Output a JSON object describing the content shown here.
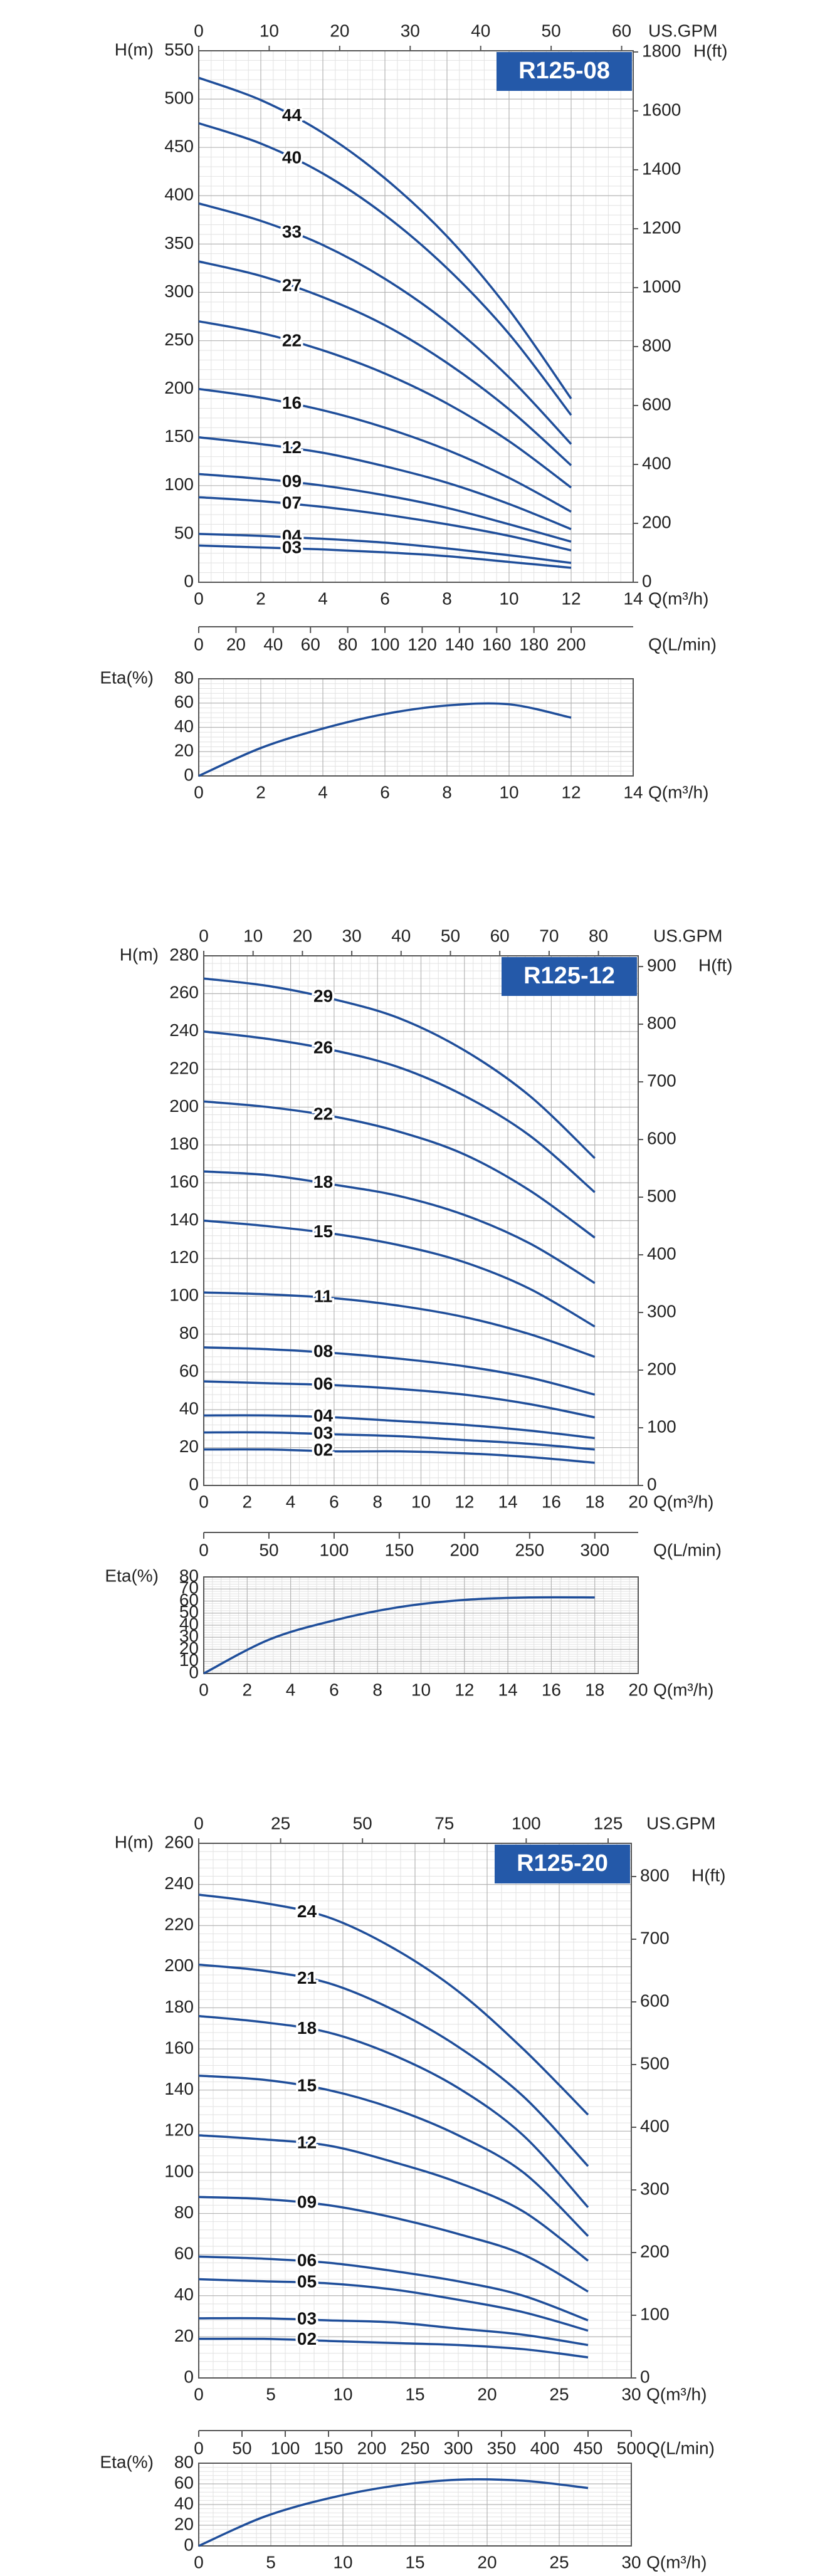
{
  "chart_data": [
    {
      "type": "line",
      "title": "R125-08",
      "ylabel": "H(m)",
      "xlabel": "Q(m³/h)",
      "grid": true,
      "xlim": [
        0,
        14
      ],
      "xticks": [
        0,
        2,
        4,
        6,
        8,
        10,
        12,
        14
      ],
      "ylim": [
        0,
        550
      ],
      "yticks": [
        0,
        50,
        100,
        150,
        200,
        250,
        300,
        350,
        400,
        450,
        500,
        550
      ],
      "top_axis": {
        "label": "US.GPM",
        "lim": [
          0,
          61.64
        ],
        "ticks": [
          0,
          10,
          20,
          30,
          40,
          50,
          60
        ]
      },
      "right_axis": {
        "label": "H(ft)",
        "lim": [
          0,
          1804
        ],
        "ticks": [
          0,
          200,
          400,
          600,
          800,
          1000,
          1200,
          1400,
          1600,
          1800
        ]
      },
      "flow_axis": {
        "label": "Q(L/min)",
        "lim": [
          0,
          233.3
        ],
        "ticks": [
          0,
          20,
          40,
          60,
          80,
          100,
          120,
          140,
          160,
          180,
          200
        ]
      },
      "x": [
        0,
        2,
        4,
        6,
        8,
        10,
        12
      ],
      "series": [
        {
          "name": "44",
          "color": "#1f4e9a",
          "values": [
            522,
            499,
            465,
            418,
            358,
            282,
            190
          ]
        },
        {
          "name": "40",
          "color": "#1f4e9a",
          "values": [
            475,
            454,
            423,
            380,
            325,
            257,
            173
          ]
        },
        {
          "name": "33",
          "color": "#1f4e9a",
          "values": [
            392,
            374,
            349,
            314,
            269,
            212,
            143
          ]
        },
        {
          "name": "27",
          "color": "#1f4e9a",
          "values": [
            332,
            317,
            295,
            266,
            227,
            179,
            121
          ]
        },
        {
          "name": "22",
          "color": "#1f4e9a",
          "values": [
            270,
            258,
            240,
            216,
            185,
            146,
            98
          ]
        },
        {
          "name": "16",
          "color": "#1f4e9a",
          "values": [
            200,
            191,
            178,
            160,
            137,
            108,
            73
          ]
        },
        {
          "name": "12",
          "color": "#1f4e9a",
          "values": [
            150,
            143,
            134,
            120,
            103,
            81,
            55
          ]
        },
        {
          "name": "09",
          "color": "#1f4e9a",
          "values": [
            112,
            107,
            100,
            90,
            77,
            60,
            42
          ]
        },
        {
          "name": "07",
          "color": "#1f4e9a",
          "values": [
            88,
            84,
            78,
            70,
            60,
            48,
            33
          ]
        },
        {
          "name": "04",
          "color": "#1f4e9a",
          "values": [
            50,
            48,
            45,
            41,
            35,
            28,
            20
          ]
        },
        {
          "name": "03",
          "color": "#1f4e9a",
          "values": [
            38,
            36,
            34,
            31,
            27,
            21,
            15
          ]
        }
      ]
    },
    {
      "type": "line",
      "ylabel": "Eta(%)",
      "xlabel": "Q(m³/h)",
      "grid": true,
      "xlim": [
        0,
        14
      ],
      "xticks": [
        0,
        2,
        4,
        6,
        8,
        10,
        12,
        14
      ],
      "ylim": [
        0,
        80
      ],
      "yticks": [
        0,
        20,
        40,
        60,
        80
      ],
      "x": [
        0,
        2,
        4,
        6,
        8,
        10,
        12
      ],
      "series": [
        {
          "color": "#1f4e9a",
          "values": [
            0,
            23,
            39,
            51,
            58,
            59,
            48
          ]
        }
      ]
    },
    {
      "type": "line",
      "title": "R125-12",
      "ylabel": "H(m)",
      "xlabel": "Q(m³/h)",
      "grid": true,
      "xlim": [
        0,
        20
      ],
      "xticks": [
        0,
        2,
        4,
        6,
        8,
        10,
        12,
        14,
        16,
        18,
        20
      ],
      "ylim": [
        0,
        280
      ],
      "yticks": [
        0,
        20,
        40,
        60,
        80,
        100,
        120,
        140,
        160,
        180,
        200,
        220,
        240,
        260,
        280
      ],
      "top_axis": {
        "label": "US.GPM",
        "lim": [
          0,
          88.06
        ],
        "ticks": [
          0,
          10,
          20,
          30,
          40,
          50,
          60,
          70,
          80
        ]
      },
      "right_axis": {
        "label": "H(ft)",
        "lim": [
          0,
          918.6
        ],
        "ticks": [
          0,
          100,
          200,
          300,
          400,
          500,
          600,
          700,
          800,
          900
        ]
      },
      "flow_axis": {
        "label": "Q(L/min)",
        "lim": [
          0,
          333.3
        ],
        "ticks": [
          0,
          50,
          100,
          150,
          200,
          250,
          300
        ]
      },
      "x": [
        0,
        3,
        6,
        9,
        12,
        15,
        18
      ],
      "series": [
        {
          "name": "29",
          "color": "#1f4e9a",
          "values": [
            268,
            264,
            257,
            247,
            230,
            206,
            173
          ]
        },
        {
          "name": "26",
          "color": "#1f4e9a",
          "values": [
            240,
            236,
            230,
            221,
            206,
            185,
            155
          ]
        },
        {
          "name": "22",
          "color": "#1f4e9a",
          "values": [
            203,
            200,
            195,
            187,
            175,
            156,
            131
          ]
        },
        {
          "name": "18",
          "color": "#1f4e9a",
          "values": [
            166,
            164,
            159,
            153,
            143,
            128,
            107
          ]
        },
        {
          "name": "15",
          "color": "#1f4e9a",
          "values": [
            140,
            137,
            133,
            127,
            118,
            104,
            84
          ]
        },
        {
          "name": "11",
          "color": "#1f4e9a",
          "values": [
            102,
            101,
            99,
            95,
            89,
            80,
            68
          ]
        },
        {
          "name": "08",
          "color": "#1f4e9a",
          "values": [
            73,
            72,
            70,
            67,
            63,
            57,
            48
          ]
        },
        {
          "name": "06",
          "color": "#1f4e9a",
          "values": [
            55,
            54,
            53,
            51,
            48,
            43,
            36
          ]
        },
        {
          "name": "04",
          "color": "#1f4e9a",
          "values": [
            37,
            37,
            36,
            34,
            32,
            29,
            25
          ]
        },
        {
          "name": "03",
          "color": "#1f4e9a",
          "values": [
            28,
            28,
            27,
            26,
            24,
            22,
            19
          ]
        },
        {
          "name": "02",
          "color": "#1f4e9a",
          "values": [
            19,
            19,
            18,
            18,
            17,
            15,
            12
          ]
        }
      ]
    },
    {
      "type": "line",
      "ylabel": "Eta(%)",
      "xlabel": "Q(m³/h)",
      "grid": true,
      "xlim": [
        0,
        20
      ],
      "xticks": [
        0,
        2,
        4,
        6,
        8,
        10,
        12,
        14,
        16,
        18,
        20
      ],
      "ylim": [
        0,
        80
      ],
      "yticks": [
        0,
        10,
        20,
        30,
        40,
        50,
        60,
        70,
        80
      ],
      "x": [
        0,
        3,
        6,
        9,
        12,
        15,
        18
      ],
      "series": [
        {
          "color": "#1f4e9a",
          "values": [
            0,
            28,
            44,
            55,
            61,
            63,
            63
          ]
        }
      ]
    },
    {
      "type": "line",
      "title": "R125-20",
      "ylabel": "H(m)",
      "xlabel": "Q(m³/h)",
      "grid": true,
      "xlim": [
        0,
        30
      ],
      "xticks": [
        0,
        5,
        10,
        15,
        20,
        25,
        30
      ],
      "ylim": [
        0,
        260
      ],
      "yticks": [
        0,
        20,
        40,
        60,
        80,
        100,
        120,
        140,
        160,
        180,
        200,
        220,
        240,
        260
      ],
      "top_axis": {
        "label": "US.GPM",
        "lim": [
          0,
          132.09
        ],
        "ticks": [
          0,
          25,
          50,
          75,
          100,
          125
        ]
      },
      "right_axis": {
        "label": "H(ft)",
        "lim": [
          0,
          853
        ],
        "ticks": [
          0,
          100,
          200,
          300,
          400,
          500,
          600,
          700,
          800
        ]
      },
      "flow_axis": {
        "label": "Q(L/min)",
        "lim": [
          0,
          500
        ],
        "ticks": [
          0,
          50,
          100,
          150,
          200,
          250,
          300,
          350,
          400,
          450,
          500
        ]
      },
      "x": [
        0,
        4.5,
        9,
        13.5,
        18,
        22.5,
        27
      ],
      "series": [
        {
          "name": "24",
          "color": "#1f4e9a",
          "values": [
            235,
            231,
            224,
            209,
            188,
            160,
            128
          ]
        },
        {
          "name": "21",
          "color": "#1f4e9a",
          "values": [
            201,
            198,
            192,
            179,
            161,
            137,
            103
          ]
        },
        {
          "name": "18",
          "color": "#1f4e9a",
          "values": [
            176,
            173,
            168,
            157,
            141,
            118,
            83
          ]
        },
        {
          "name": "15",
          "color": "#1f4e9a",
          "values": [
            147,
            145,
            140,
            131,
            118,
            100,
            69
          ]
        },
        {
          "name": "12",
          "color": "#1f4e9a",
          "values": [
            118,
            116,
            113,
            105,
            95,
            81,
            57
          ]
        },
        {
          "name": "09",
          "color": "#1f4e9a",
          "values": [
            88,
            87,
            84,
            78,
            70,
            60,
            42
          ]
        },
        {
          "name": "06",
          "color": "#1f4e9a",
          "values": [
            59,
            58,
            56,
            52,
            47,
            40,
            28
          ]
        },
        {
          "name": "05",
          "color": "#1f4e9a",
          "values": [
            48,
            47,
            46,
            43,
            38,
            32,
            23
          ]
        },
        {
          "name": "03",
          "color": "#1f4e9a",
          "values": [
            29,
            29,
            28,
            27,
            24,
            21,
            16
          ]
        },
        {
          "name": "02",
          "color": "#1f4e9a",
          "values": [
            19,
            19,
            18,
            17,
            16,
            14,
            10
          ]
        }
      ]
    },
    {
      "type": "line",
      "ylabel": "Eta(%)",
      "xlabel": "Q(m³/h)",
      "grid": true,
      "xlim": [
        0,
        30
      ],
      "xticks": [
        0,
        5,
        10,
        15,
        20,
        25,
        30
      ],
      "ylim": [
        0,
        80
      ],
      "yticks": [
        0,
        20,
        40,
        60,
        80
      ],
      "x": [
        0,
        4.5,
        9,
        13.5,
        18,
        22.5,
        27
      ],
      "series": [
        {
          "color": "#1f4e9a",
          "values": [
            0,
            28,
            46,
            58,
            64,
            63,
            56
          ]
        }
      ]
    }
  ]
}
